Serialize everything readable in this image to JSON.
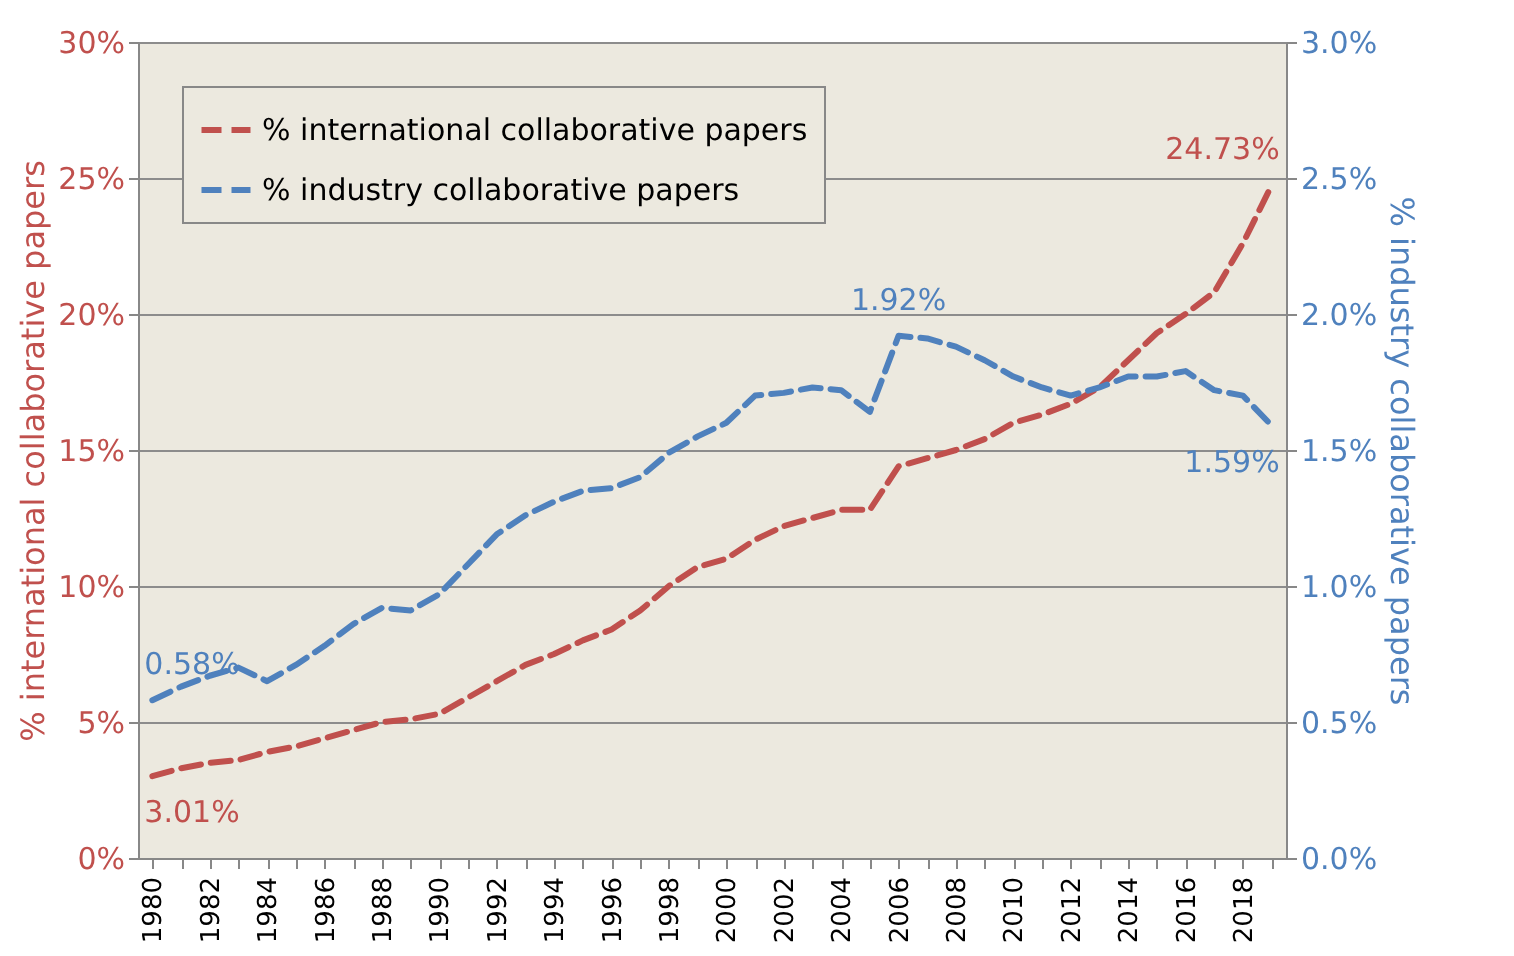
{
  "chart_data": {
    "type": "line",
    "categories": [
      "1980",
      null,
      "1982",
      null,
      "1984",
      null,
      "1986",
      null,
      "1988",
      null,
      "1990",
      null,
      "1992",
      null,
      "1994",
      null,
      "1996",
      null,
      "1998",
      null,
      "2000",
      null,
      "2002",
      null,
      "2004",
      null,
      "2006",
      null,
      "2008",
      null,
      "2010",
      null,
      "2012",
      null,
      "2014",
      null,
      "2016",
      null,
      "2018",
      null
    ],
    "ylabel": "% international collaborative papers",
    "y2label": "% industry collaborative papers",
    "series": [
      {
        "name": "% international collaborative papers",
        "color": "#c0504d",
        "values": [
          3.01,
          3.3,
          3.5,
          3.6,
          3.9,
          4.1,
          4.4,
          4.7,
          5.0,
          5.1,
          5.3,
          5.9,
          6.5,
          7.1,
          7.5,
          8.0,
          8.4,
          9.1,
          10.0,
          10.7,
          11.0,
          11.7,
          12.2,
          12.5,
          12.8,
          12.8,
          14.4,
          14.7,
          15.0,
          15.4,
          16.0,
          16.3,
          16.7,
          17.3,
          18.3,
          19.3,
          20.0,
          20.8,
          22.6,
          24.73
        ],
        "value_labels": [
          "3.01%",
          null,
          null,
          null,
          null,
          null,
          null,
          null,
          null,
          null,
          null,
          null,
          null,
          null,
          null,
          null,
          null,
          null,
          null,
          null,
          null,
          null,
          null,
          null,
          null,
          null,
          null,
          null,
          null,
          null,
          null,
          null,
          null,
          null,
          null,
          null,
          null,
          null,
          null,
          "24.73%"
        ]
      },
      {
        "name": "% industry collaborative papers",
        "color": "#4f81bd",
        "axis": "y2",
        "values": [
          0.58,
          0.63,
          0.67,
          0.7,
          0.65,
          0.71,
          0.78,
          0.86,
          0.92,
          0.91,
          0.97,
          1.08,
          1.19,
          1.26,
          1.31,
          1.35,
          1.36,
          1.4,
          1.49,
          1.55,
          1.6,
          1.7,
          1.71,
          1.73,
          1.72,
          1.64,
          1.92,
          1.91,
          1.88,
          1.83,
          1.77,
          1.73,
          1.7,
          1.73,
          1.77,
          1.77,
          1.79,
          1.72,
          1.7,
          1.59
        ],
        "value_labels": [
          "0.58%",
          null,
          null,
          null,
          null,
          null,
          null,
          null,
          null,
          null,
          null,
          null,
          null,
          null,
          null,
          null,
          null,
          null,
          null,
          null,
          null,
          null,
          null,
          null,
          null,
          null,
          "1.92%",
          null,
          null,
          null,
          null,
          null,
          null,
          null,
          null,
          null,
          null,
          null,
          null,
          "1.59%"
        ]
      }
    ],
    "ylim": [
      0,
      30
    ],
    "yticks": [
      {
        "value": 0,
        "label": "0%"
      },
      {
        "value": 5,
        "label": "5%"
      },
      {
        "value": 10,
        "label": "10%"
      },
      {
        "value": 15,
        "label": "15%"
      },
      {
        "value": 20,
        "label": "20%"
      },
      {
        "value": 25,
        "label": "25%"
      },
      {
        "value": 30,
        "label": "30%"
      }
    ],
    "y2lim": [
      0,
      3
    ],
    "y2ticks": [
      {
        "value": 0,
        "label": "0.0%"
      },
      {
        "value": 0.5,
        "label": "0.5%"
      },
      {
        "value": 1,
        "label": "1.0%"
      },
      {
        "value": 1.5,
        "label": "1.5%"
      },
      {
        "value": 2,
        "label": "2.0%"
      },
      {
        "value": 2.5,
        "label": "2.5%"
      },
      {
        "value": 3,
        "label": "3.0%"
      }
    ],
    "grid": "y",
    "legend": "top left",
    "line_style": "dashed",
    "marker": "none"
  }
}
